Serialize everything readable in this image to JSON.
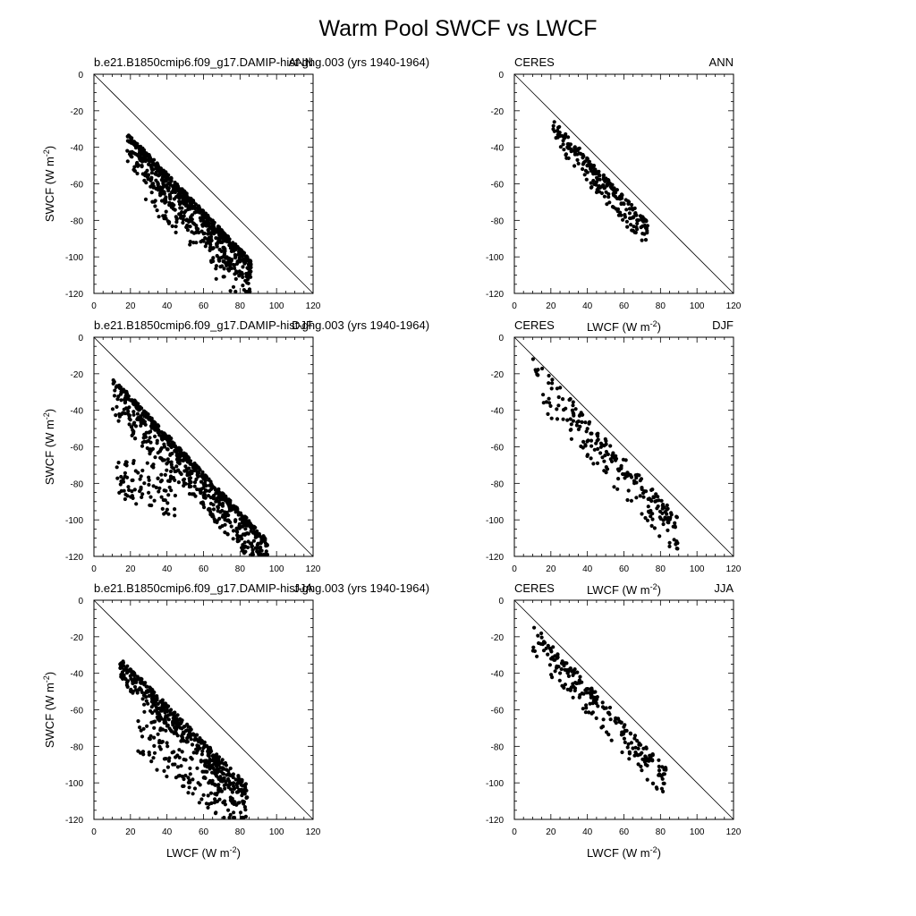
{
  "title": "Warm Pool SWCF vs LWCF",
  "chart_data": [
    {
      "type": "scatter",
      "left_label": "b.e21.B1850cmip6.f09_g17.DAMIP-hist-ghg.003 (yrs 1940-1964)",
      "season": "ANN",
      "xlabel": "",
      "ylabel": "SWCF (W m",
      "ylabel_sup": "-2",
      "ylabel_end": ")",
      "xlim": [
        0,
        120
      ],
      "ylim": [
        -120,
        0
      ],
      "xticks": [
        "0",
        "20",
        "40",
        "60",
        "80",
        "100",
        "120"
      ],
      "yticks": [
        "0",
        "-20",
        "-40",
        "-60",
        "-80",
        "-100",
        "-120"
      ],
      "one_to_one_line": true,
      "clusters": [
        {
          "x0": 18,
          "x1": 86,
          "slope": -1.03,
          "intercept": -16,
          "spread_up": 3,
          "spread_down": 14,
          "n": 620
        },
        {
          "x0": 28,
          "x1": 86,
          "slope": -1.05,
          "intercept": -28,
          "spread_up": 5,
          "spread_down": 14,
          "n": 110
        }
      ]
    },
    {
      "type": "scatter",
      "left_label": "CERES",
      "season": "ANN",
      "xlabel": "LWCF (W m",
      "xlabel_sup": "-2",
      "xlabel_end": ")",
      "ylabel": "",
      "xlim": [
        0,
        120
      ],
      "ylim": [
        -120,
        0
      ],
      "xticks": [
        "0",
        "20",
        "40",
        "60",
        "80",
        "100",
        "120"
      ],
      "yticks": [
        "0",
        "-20",
        "-40",
        "-60",
        "-80",
        "-100",
        "-120"
      ],
      "one_to_one_line": true,
      "clusters": [
        {
          "x0": 21,
          "x1": 73,
          "slope": -1.08,
          "intercept": -5,
          "spread_up": 3,
          "spread_down": 12,
          "n": 230
        }
      ]
    },
    {
      "type": "scatter",
      "left_label": "b.e21.B1850cmip6.f09_g17.DAMIP-hist-ghg.003 (yrs 1940-1964)",
      "season": "DJF",
      "xlabel": "",
      "ylabel": "SWCF (W m",
      "ylabel_sup": "-2",
      "ylabel_end": ")",
      "xlim": [
        0,
        120
      ],
      "ylim": [
        -120,
        0
      ],
      "xticks": [
        "0",
        "20",
        "40",
        "60",
        "80",
        "100",
        "120"
      ],
      "yticks": [
        "0",
        "-20",
        "-40",
        "-60",
        "-80",
        "-100",
        "-120"
      ],
      "one_to_one_line": true,
      "clusters": [
        {
          "x0": 10,
          "x1": 95,
          "slope": -1.05,
          "intercept": -14,
          "spread_up": 3,
          "spread_down": 18,
          "n": 700
        },
        {
          "x0": 12,
          "x1": 45,
          "slope": -0.35,
          "intercept": -70,
          "spread_up": 12,
          "spread_down": 14,
          "n": 90
        }
      ]
    },
    {
      "type": "scatter",
      "left_label": "CERES",
      "season": "DJF",
      "xlabel": "LWCF (W m",
      "xlabel_sup": "-2",
      "xlabel_end": ")",
      "ylabel": "",
      "xlim": [
        0,
        120
      ],
      "ylim": [
        -120,
        0
      ],
      "xticks": [
        "0",
        "20",
        "40",
        "60",
        "80",
        "100",
        "120"
      ],
      "yticks": [
        "0",
        "-20",
        "-40",
        "-60",
        "-80",
        "-100",
        "-120"
      ],
      "one_to_one_line": true,
      "clusters": [
        {
          "x0": 10,
          "x1": 90,
          "slope": -1.1,
          "intercept": -6,
          "spread_up": 6,
          "spread_down": 16,
          "n": 230
        }
      ]
    },
    {
      "type": "scatter",
      "left_label": "b.e21.B1850cmip6.f09_g17.DAMIP-hist-ghg.003 (yrs 1940-1964)",
      "season": "JJA",
      "xlabel": "LWCF (W m",
      "xlabel_sup": "-2",
      "xlabel_end": ")",
      "ylabel": "SWCF (W m",
      "ylabel_sup": "-2",
      "ylabel_end": ")",
      "xlim": [
        0,
        120
      ],
      "ylim": [
        -120,
        0
      ],
      "xticks": [
        "0",
        "20",
        "40",
        "60",
        "80",
        "100",
        "120"
      ],
      "yticks": [
        "0",
        "-20",
        "-40",
        "-60",
        "-80",
        "-100",
        "-120"
      ],
      "one_to_one_line": true,
      "clusters": [
        {
          "x0": 14,
          "x1": 84,
          "slope": -1.0,
          "intercept": -20,
          "spread_up": 3,
          "spread_down": 10,
          "n": 420
        },
        {
          "x0": 22,
          "x1": 84,
          "slope": -0.8,
          "intercept": -48,
          "spread_up": 12,
          "spread_down": 18,
          "n": 180
        }
      ]
    },
    {
      "type": "scatter",
      "left_label": "CERES",
      "season": "JJA",
      "xlabel": "LWCF (W m",
      "xlabel_sup": "-2",
      "xlabel_end": ")",
      "ylabel": "",
      "xlim": [
        0,
        120
      ],
      "ylim": [
        -120,
        0
      ],
      "xticks": [
        "0",
        "20",
        "40",
        "60",
        "80",
        "100",
        "120"
      ],
      "yticks": [
        "0",
        "-20",
        "-40",
        "-60",
        "-80",
        "-100",
        "-120"
      ],
      "one_to_one_line": true,
      "clusters": [
        {
          "x0": 10,
          "x1": 83,
          "slope": -1.08,
          "intercept": -6,
          "spread_up": 4,
          "spread_down": 14,
          "n": 230
        }
      ]
    }
  ]
}
